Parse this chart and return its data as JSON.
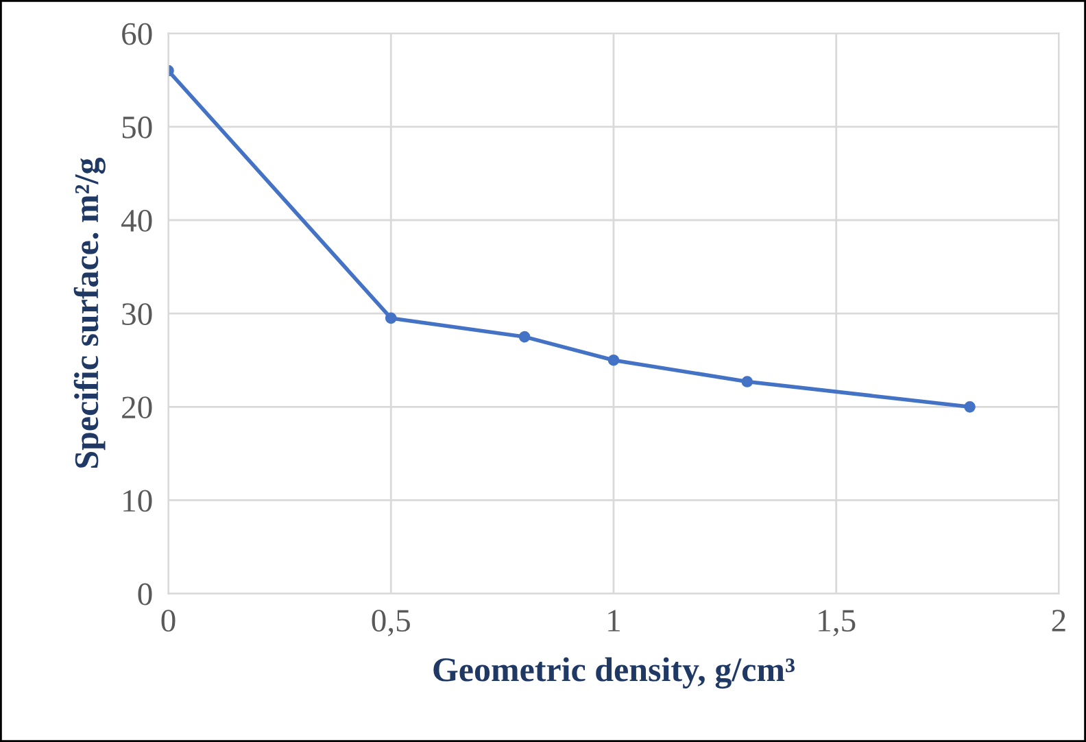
{
  "chart_data": {
    "type": "line",
    "xlabel": "Geometric density, g/cm³",
    "ylabel": "Specific surface. m²/g",
    "x": [
      0,
      0.5,
      0.8,
      1,
      1.3,
      1.8
    ],
    "series": [
      {
        "color": "#4472c4",
        "values": [
          56,
          29.5,
          27.5,
          25,
          22.7,
          20
        ]
      }
    ],
    "xlim": [
      0,
      2
    ],
    "xticks": [
      0,
      {
        "value": 0.5,
        "label": "0,5"
      },
      1,
      {
        "value": 1.5,
        "label": "1,5"
      },
      2
    ],
    "ylim": [
      0,
      60
    ],
    "yticks": [
      0,
      10,
      20,
      30,
      40,
      50,
      60
    ],
    "grid": true,
    "marker": "circle",
    "line_style": "solid"
  }
}
